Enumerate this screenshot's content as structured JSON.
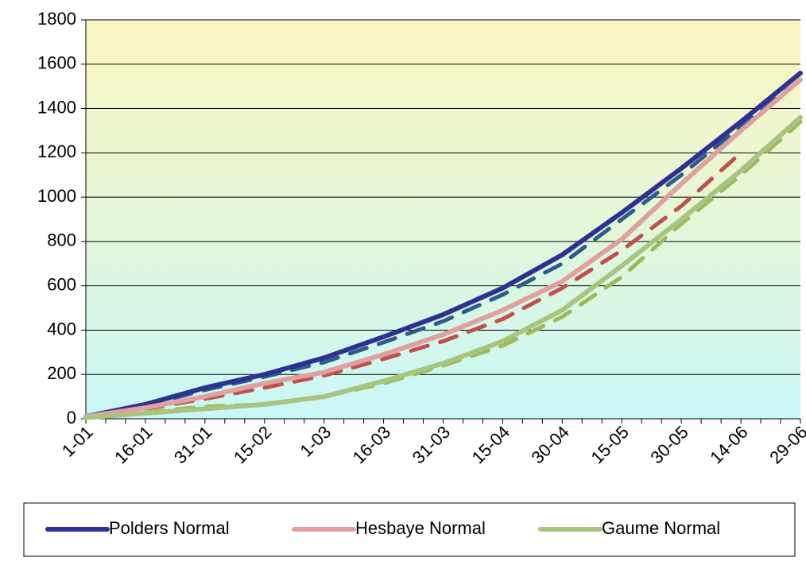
{
  "chart_data": {
    "type": "line",
    "categories": [
      "1-01",
      "16-01",
      "31-01",
      "15-02",
      "1-03",
      "16-03",
      "31-03",
      "15-04",
      "30-04",
      "15-05",
      "30-05",
      "14-06",
      "29-06"
    ],
    "series": [
      {
        "color": "#2E5C8A",
        "dashed": true,
        "values": [
          10,
          60,
          130,
          190,
          255,
          345,
          440,
          560,
          700,
          900,
          1100,
          1320,
          1530
        ]
      },
      {
        "color": "#C0504D",
        "dashed": true,
        "values": [
          10,
          45,
          90,
          140,
          195,
          270,
          350,
          450,
          590,
          760,
          960,
          1200,
          null
        ]
      },
      {
        "color": "#9BBB59",
        "dashed": true,
        "values": [
          5,
          30,
          55,
          65,
          100,
          160,
          240,
          330,
          460,
          640,
          880,
          1100,
          1340
        ]
      },
      {
        "name": "Polders Normal",
        "color": "#2E3192",
        "values": [
          10,
          65,
          140,
          200,
          275,
          370,
          470,
          590,
          740,
          930,
          1130,
          1340,
          1560
        ]
      },
      {
        "name": "Hesbaye Normal",
        "color": "#E0A0A0",
        "values": [
          10,
          50,
          100,
          160,
          210,
          290,
          380,
          490,
          620,
          810,
          1060,
          1300,
          1530
        ]
      },
      {
        "name": "Gaume Normal",
        "color": "#A9C47F",
        "values": [
          5,
          25,
          45,
          65,
          100,
          170,
          250,
          350,
          490,
          690,
          900,
          1120,
          1360
        ]
      }
    ],
    "ylim": [
      0,
      1800
    ],
    "yticks": [
      0,
      200,
      400,
      600,
      800,
      1000,
      1200,
      1400,
      1600,
      1800
    ],
    "grid": true
  }
}
